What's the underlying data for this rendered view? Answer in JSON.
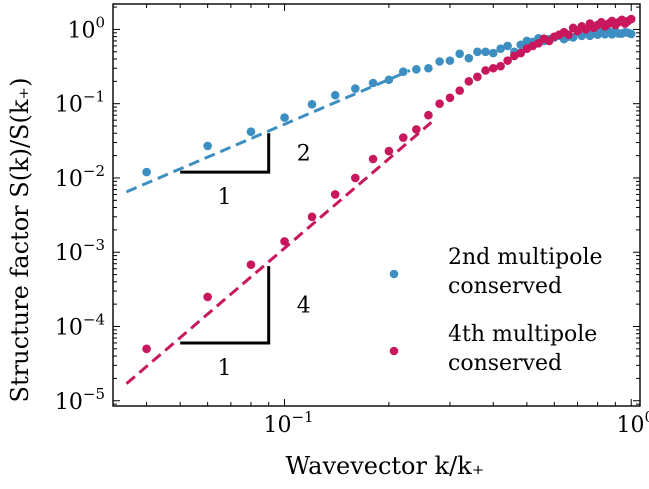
{
  "chart_data": {
    "type": "scatter",
    "xscale": "log",
    "yscale": "log",
    "xlim": [
      0.032,
      1.06
    ],
    "ylim": [
      8.5e-06,
      2.2
    ],
    "xlabel": "Wavevector k/k₊",
    "ylabel": "Structure factor S(k)/S(k₊)",
    "xticks": [
      {
        "value": 0.1,
        "base": "10",
        "exp": "−1"
      },
      {
        "value": 1,
        "base": "10",
        "exp": "0"
      }
    ],
    "yticks": [
      {
        "value": 1e-05,
        "base": "10",
        "exp": "−5"
      },
      {
        "value": 0.0001,
        "base": "10",
        "exp": "−4"
      },
      {
        "value": 0.001,
        "base": "10",
        "exp": "−3"
      },
      {
        "value": 0.01,
        "base": "10",
        "exp": "−2"
      },
      {
        "value": 0.1,
        "base": "10",
        "exp": "−1"
      },
      {
        "value": 1,
        "base": "10",
        "exp": "0"
      }
    ],
    "legend_position": "right",
    "series": [
      {
        "name": "2nd multipole conserved",
        "legend_lines": [
          "2nd multipole",
          "conserved"
        ],
        "color": "#3d8fc2",
        "x": [
          0.04,
          0.06,
          0.08,
          0.1,
          0.12,
          0.14,
          0.16,
          0.18,
          0.2,
          0.22,
          0.24,
          0.26,
          0.28,
          0.3,
          0.32,
          0.34,
          0.36,
          0.38,
          0.4,
          0.42,
          0.44,
          0.46,
          0.48,
          0.5,
          0.52,
          0.54,
          0.56,
          0.58,
          0.6,
          0.62,
          0.64,
          0.66,
          0.68,
          0.7,
          0.72,
          0.74,
          0.76,
          0.78,
          0.8,
          0.82,
          0.84,
          0.86,
          0.88,
          0.9,
          0.92,
          0.94,
          0.96,
          0.98,
          1.0
        ],
        "y": [
          0.012,
          0.027,
          0.042,
          0.065,
          0.098,
          0.13,
          0.16,
          0.19,
          0.21,
          0.27,
          0.29,
          0.3,
          0.37,
          0.38,
          0.47,
          0.41,
          0.5,
          0.5,
          0.48,
          0.55,
          0.6,
          0.5,
          0.62,
          0.7,
          0.68,
          0.76,
          0.7,
          0.74,
          0.78,
          0.82,
          0.74,
          0.8,
          0.78,
          0.95,
          0.82,
          0.9,
          0.82,
          0.95,
          0.85,
          0.92,
          0.86,
          0.95,
          0.86,
          0.95,
          0.88,
          0.88,
          0.92,
          0.9,
          0.87
        ]
      },
      {
        "name": "4th multipole conserved",
        "legend_lines": [
          "4th multipole",
          "conserved"
        ],
        "color": "#c8175d",
        "x": [
          0.04,
          0.06,
          0.08,
          0.1,
          0.12,
          0.14,
          0.16,
          0.18,
          0.2,
          0.22,
          0.24,
          0.26,
          0.28,
          0.3,
          0.32,
          0.34,
          0.36,
          0.38,
          0.4,
          0.42,
          0.44,
          0.46,
          0.48,
          0.5,
          0.52,
          0.54,
          0.56,
          0.58,
          0.6,
          0.62,
          0.64,
          0.66,
          0.68,
          0.7,
          0.72,
          0.74,
          0.76,
          0.78,
          0.8,
          0.82,
          0.84,
          0.86,
          0.88,
          0.9,
          0.92,
          0.94,
          0.96,
          0.98,
          1.0
        ],
        "y": [
          5e-05,
          0.00025,
          0.00068,
          0.0014,
          0.003,
          0.006,
          0.01,
          0.018,
          0.023,
          0.035,
          0.045,
          0.07,
          0.1,
          0.12,
          0.15,
          0.2,
          0.23,
          0.28,
          0.3,
          0.32,
          0.38,
          0.44,
          0.48,
          0.55,
          0.6,
          0.65,
          0.75,
          0.7,
          0.8,
          0.85,
          0.92,
          0.85,
          1.05,
          0.95,
          1.1,
          1.0,
          1.2,
          1.05,
          1.15,
          1.25,
          1.1,
          1.2,
          1.3,
          1.15,
          1.25,
          1.35,
          1.2,
          1.3,
          1.38
        ]
      }
    ],
    "fit_lines": [
      {
        "series": 0,
        "exponent": 2,
        "x0": 0.035,
        "x1": 0.23,
        "y0": 0.0065,
        "y1": 0.28
      },
      {
        "series": 1,
        "exponent": 4,
        "x0": 0.035,
        "x1": 0.265,
        "y0": 1.7e-05,
        "y1": 0.056
      }
    ],
    "slope_triangles": [
      {
        "exponent_label": "2",
        "run_label": "1",
        "x_start": 0.05,
        "x_corner": 0.09,
        "y_base": 0.012,
        "y_top": 0.04
      },
      {
        "exponent_label": "4",
        "run_label": "1",
        "x_start": 0.05,
        "x_corner": 0.09,
        "y_base": 6e-05,
        "y_top": 0.00065
      }
    ]
  }
}
